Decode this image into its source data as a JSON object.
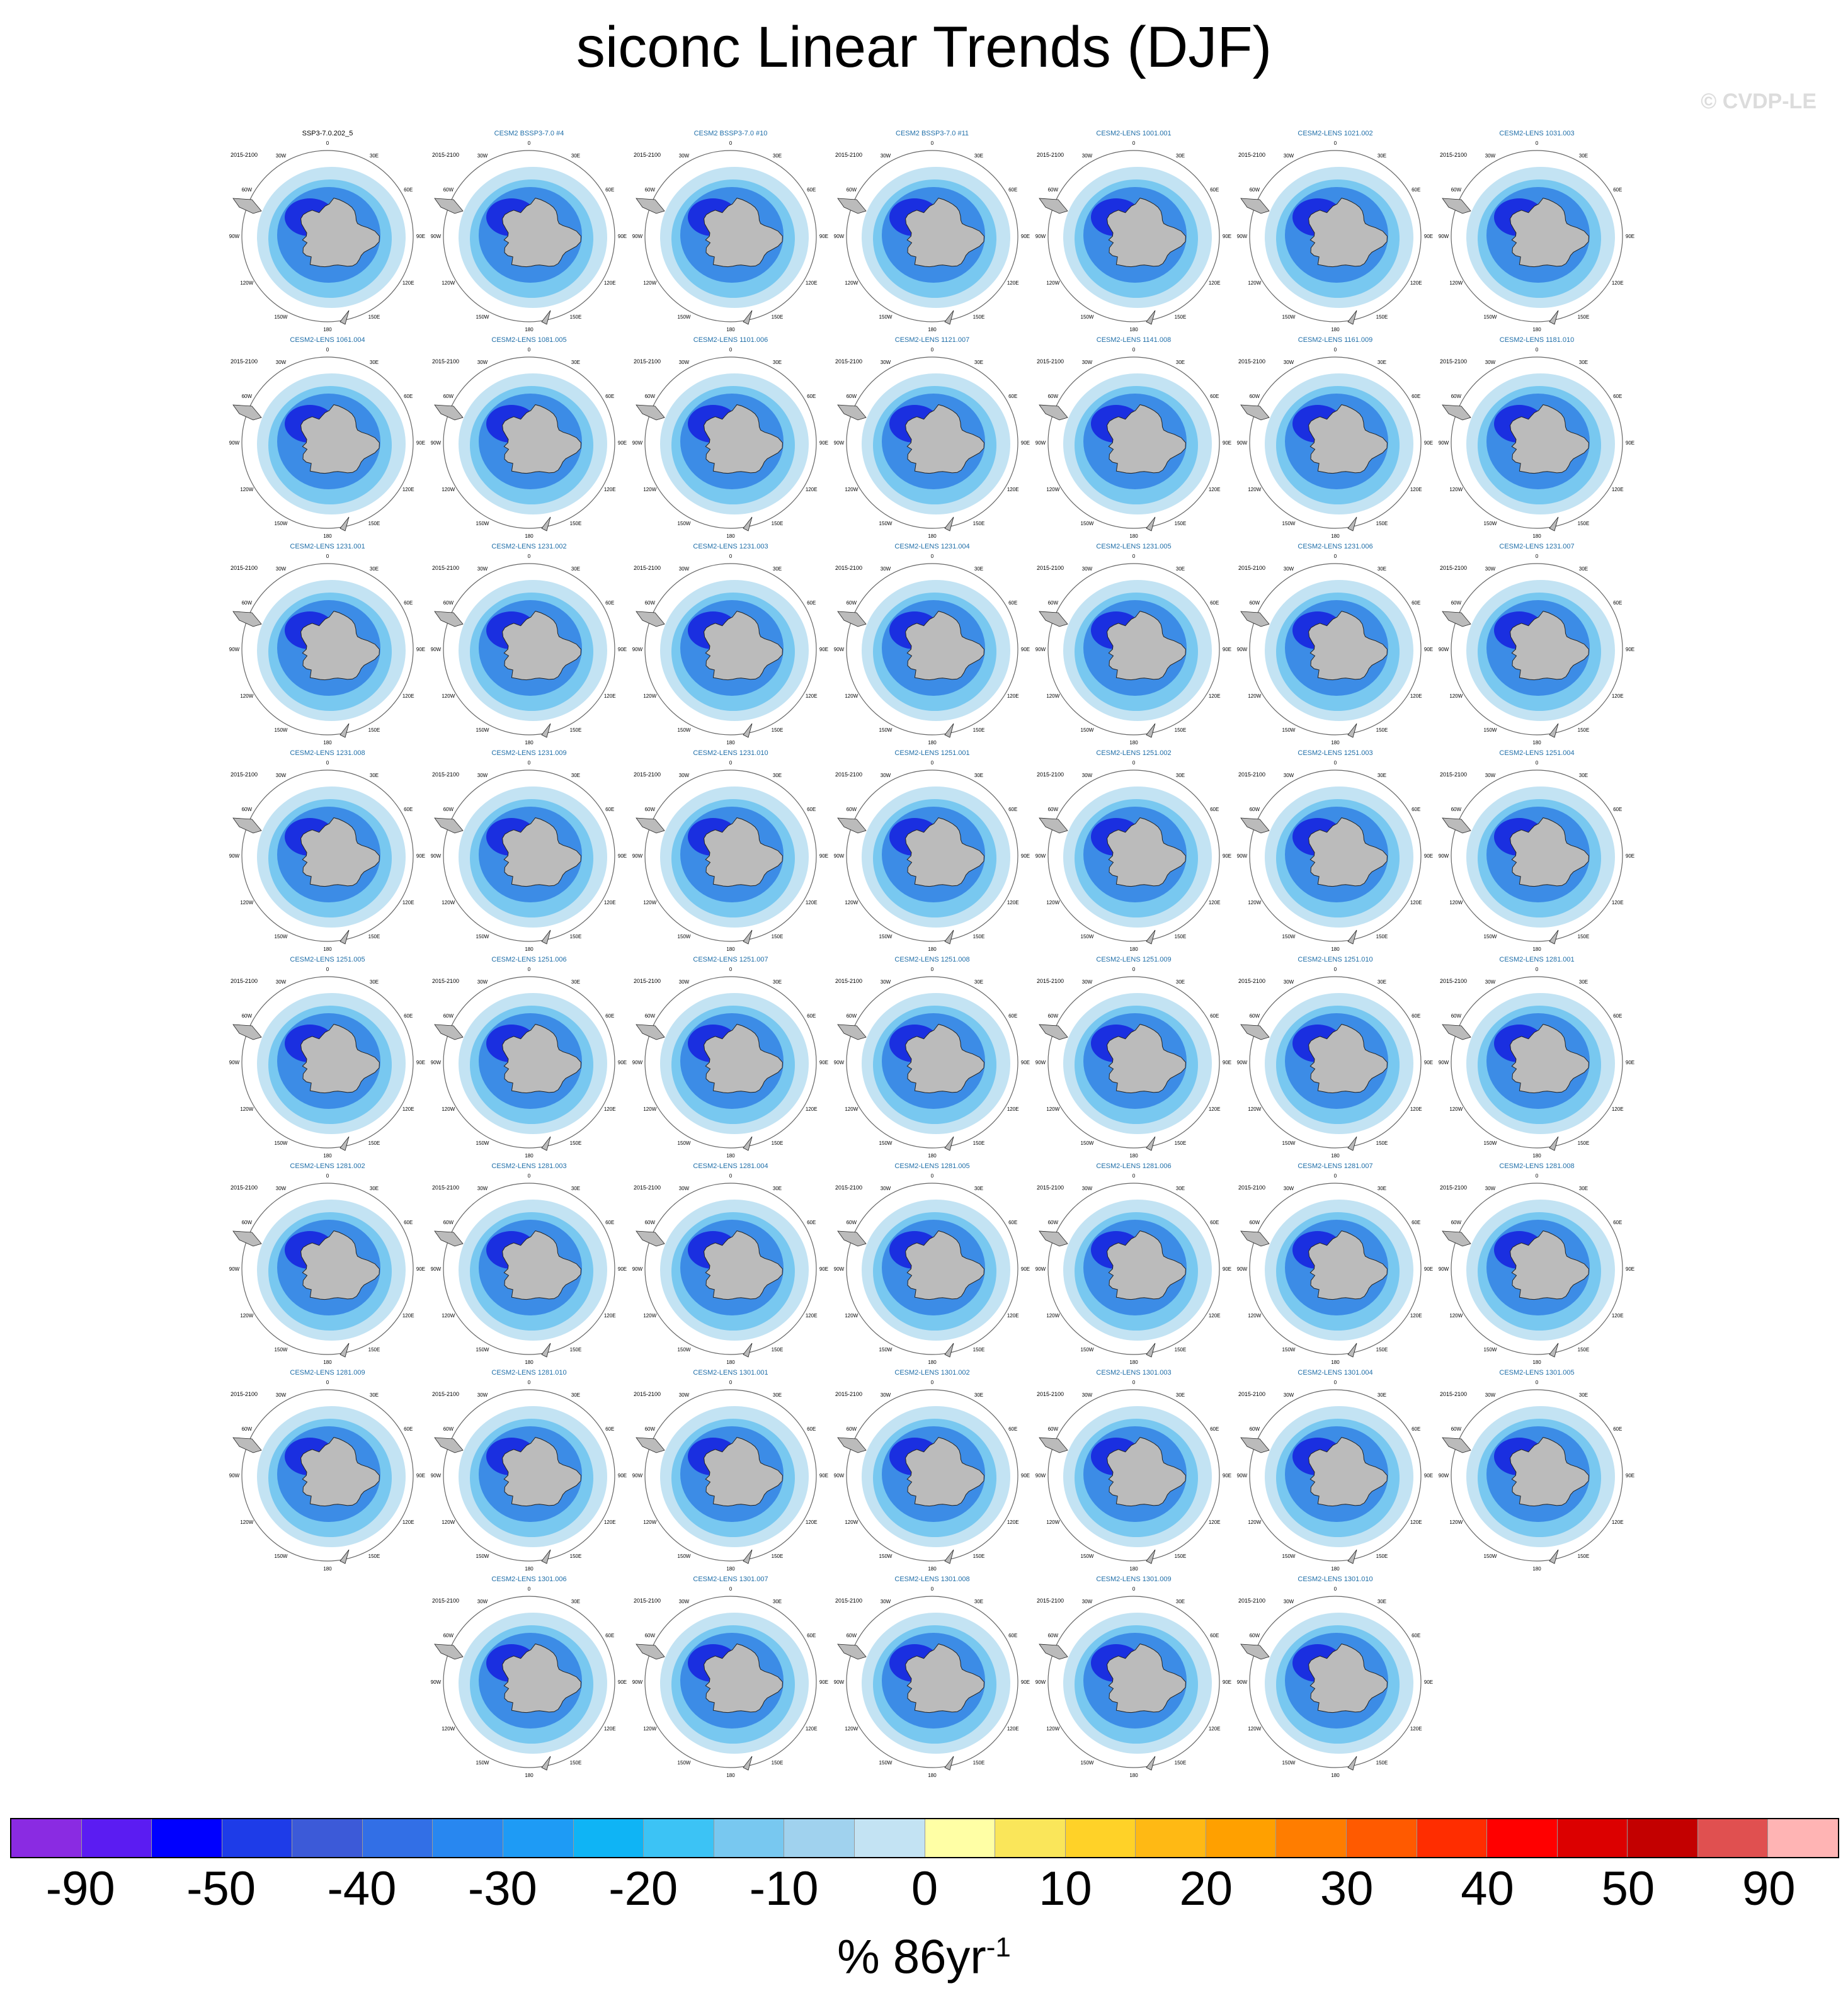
{
  "title": "siconc Linear Trends (DJF)",
  "watermark": "© CVDP-LE",
  "period": "2015-2100",
  "map_labels": {
    "meridians": [
      "0",
      "30E",
      "60E",
      "90E",
      "120E",
      "150E",
      "180",
      "150W",
      "120W",
      "90W",
      "60W",
      "30W"
    ]
  },
  "panels": [
    "SSP3-7.0.202_5",
    "CESM2 BSSP3-7.0 #4",
    "CESM2 BSSP3-7.0 #10",
    "CESM2 BSSP3-7.0 #11",
    "CESM2-LENS 1001.001",
    "CESM2-LENS 1021.002",
    "CESM2-LENS 1031.003",
    "CESM2-LENS 1061.004",
    "CESM2-LENS 1081.005",
    "CESM2-LENS 1101.006",
    "CESM2-LENS 1121.007",
    "CESM2-LENS 1141.008",
    "CESM2-LENS 1161.009",
    "CESM2-LENS 1181.010",
    "CESM2-LENS 1231.001",
    "CESM2-LENS 1231.002",
    "CESM2-LENS 1231.003",
    "CESM2-LENS 1231.004",
    "CESM2-LENS 1231.005",
    "CESM2-LENS 1231.006",
    "CESM2-LENS 1231.007",
    "CESM2-LENS 1231.008",
    "CESM2-LENS 1231.009",
    "CESM2-LENS 1231.010",
    "CESM2-LENS 1251.001",
    "CESM2-LENS 1251.002",
    "CESM2-LENS 1251.003",
    "CESM2-LENS 1251.004",
    "CESM2-LENS 1251.005",
    "CESM2-LENS 1251.006",
    "CESM2-LENS 1251.007",
    "CESM2-LENS 1251.008",
    "CESM2-LENS 1251.009",
    "CESM2-LENS 1251.010",
    "CESM2-LENS 1281.001",
    "CESM2-LENS 1281.002",
    "CESM2-LENS 1281.003",
    "CESM2-LENS 1281.004",
    "CESM2-LENS 1281.005",
    "CESM2-LENS 1281.006",
    "CESM2-LENS 1281.007",
    "CESM2-LENS 1281.008",
    "CESM2-LENS 1281.009",
    "CESM2-LENS 1281.010",
    "CESM2-LENS 1301.001",
    "CESM2-LENS 1301.002",
    "CESM2-LENS 1301.003",
    "CESM2-LENS 1301.004",
    "CESM2-LENS 1301.005",
    "CESM2-LENS 1301.006",
    "CESM2-LENS 1301.007",
    "CESM2-LENS 1301.008",
    "CESM2-LENS 1301.009",
    "CESM2-LENS 1301.010"
  ],
  "colorbar": {
    "colors": [
      "#8a2be2",
      "#5b1cf2",
      "#0000ff",
      "#1e3ce8",
      "#3c5ad8",
      "#326fe6",
      "#2887f0",
      "#1e9bf5",
      "#0fb4f5",
      "#3cc3f5",
      "#78c8f0",
      "#a0d2ee",
      "#c3e3f3",
      "#ffffa5",
      "#fae65a",
      "#ffd228",
      "#ffb914",
      "#ffa000",
      "#ff7d00",
      "#ff5a00",
      "#ff2d00",
      "#ff0000",
      "#dc0000",
      "#c30000",
      "#e05050",
      "#ffb4b4"
    ],
    "tick_labels": [
      "-90",
      "-50",
      "-40",
      "-30",
      "-20",
      "-10",
      "0",
      "10",
      "20",
      "30",
      "40",
      "50",
      "90"
    ],
    "units": "% 86yr",
    "units_exponent": "-1"
  }
}
